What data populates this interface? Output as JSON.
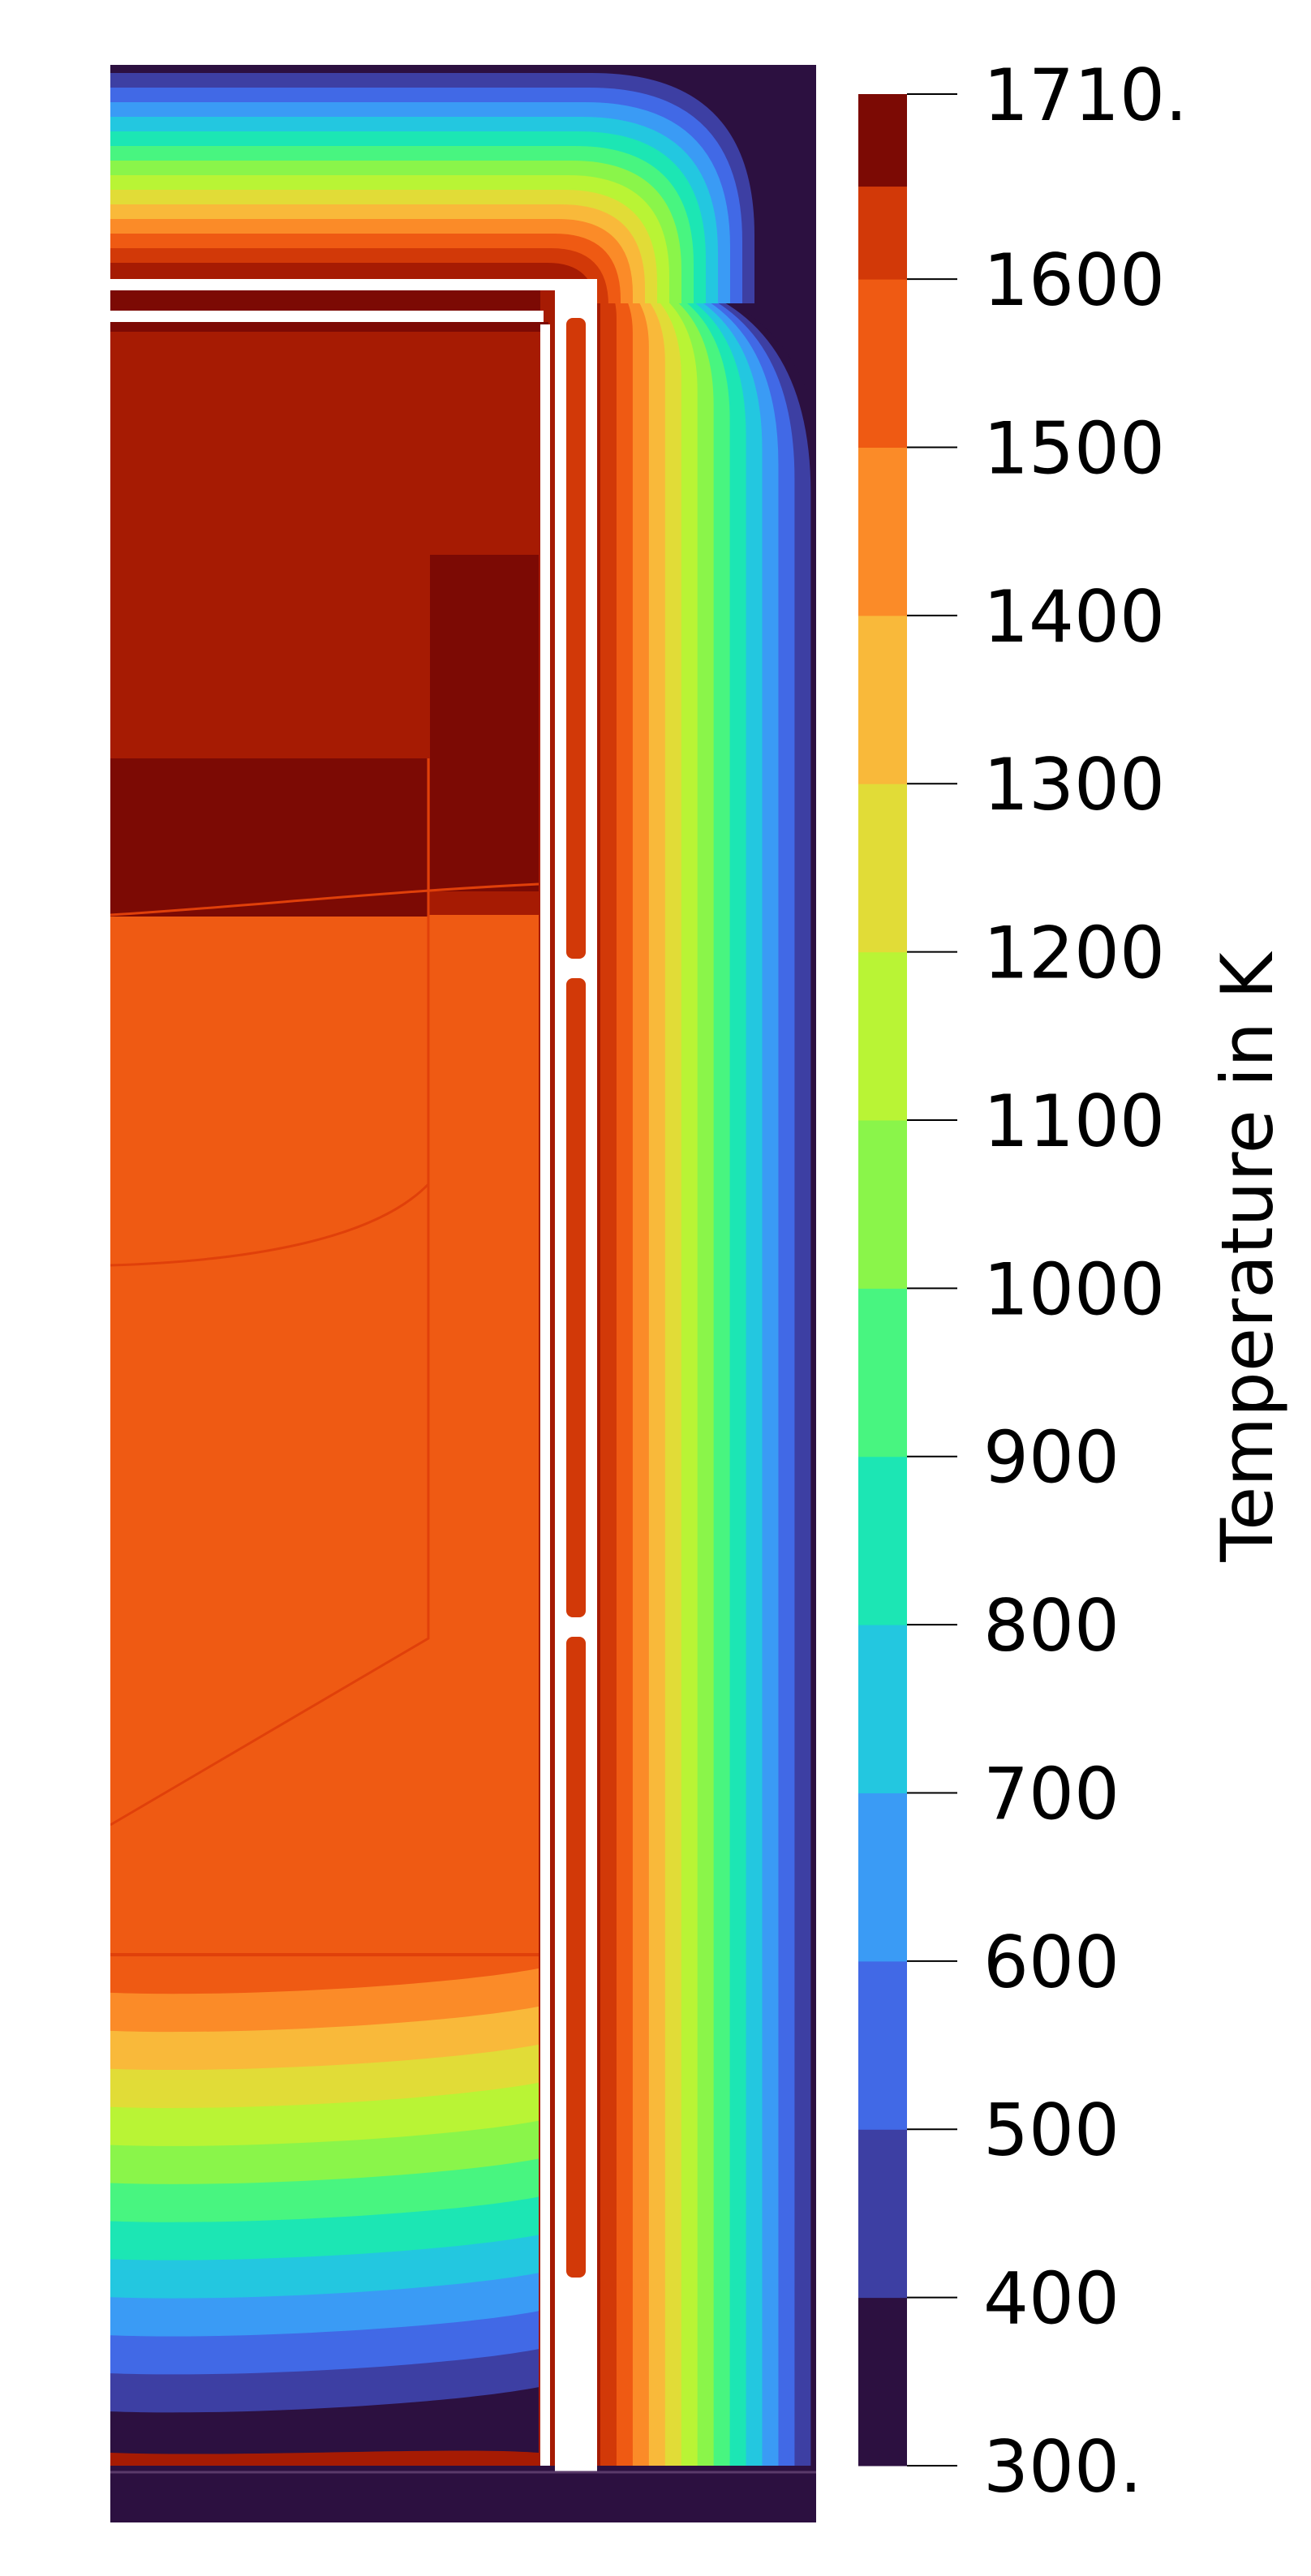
{
  "chart_data": {
    "type": "heatmap",
    "title": "",
    "colorbar": {
      "title": "Temperature in K",
      "range": [
        300,
        1710
      ],
      "tick_labels": [
        "1710.",
        "1600",
        "1500",
        "1400",
        "1300",
        "1200",
        "1100",
        "1000",
        "900",
        "800",
        "700",
        "600",
        "500",
        "400",
        "300."
      ],
      "tick_values": [
        1710,
        1600,
        1500,
        1400,
        1300,
        1200,
        1100,
        1000,
        900,
        800,
        700,
        600,
        500,
        400,
        300
      ],
      "bands": [
        {
          "from": 300,
          "to": 400,
          "color": "#2c1040"
        },
        {
          "from": 400,
          "to": 500,
          "color": "#3d3fa3"
        },
        {
          "from": 500,
          "to": 600,
          "color": "#4169e6"
        },
        {
          "from": 600,
          "to": 700,
          "color": "#3a9bf5"
        },
        {
          "from": 700,
          "to": 800,
          "color": "#23c7e0"
        },
        {
          "from": 800,
          "to": 900,
          "color": "#1ce6b4"
        },
        {
          "from": 900,
          "to": 1000,
          "color": "#48f580"
        },
        {
          "from": 1000,
          "to": 1100,
          "color": "#8af54a"
        },
        {
          "from": 1100,
          "to": 1200,
          "color": "#b9f435"
        },
        {
          "from": 1200,
          "to": 1300,
          "color": "#e1dc37"
        },
        {
          "from": 1300,
          "to": 1400,
          "color": "#f9b93a"
        },
        {
          "from": 1400,
          "to": 1500,
          "color": "#fb8b28"
        },
        {
          "from": 1500,
          "to": 1600,
          "color": "#ef5a13"
        },
        {
          "from": 1600,
          "to": 1700,
          "color": "#d23908"
        },
        {
          "from": 1700,
          "to": 1710,
          "color": "#a61b03"
        }
      ],
      "top_color": "#7c0a04"
    },
    "field": {
      "min": 300,
      "max": 1710,
      "hot_zone_value": 1580,
      "heater_value": 1650,
      "ambient_value": 300
    }
  }
}
